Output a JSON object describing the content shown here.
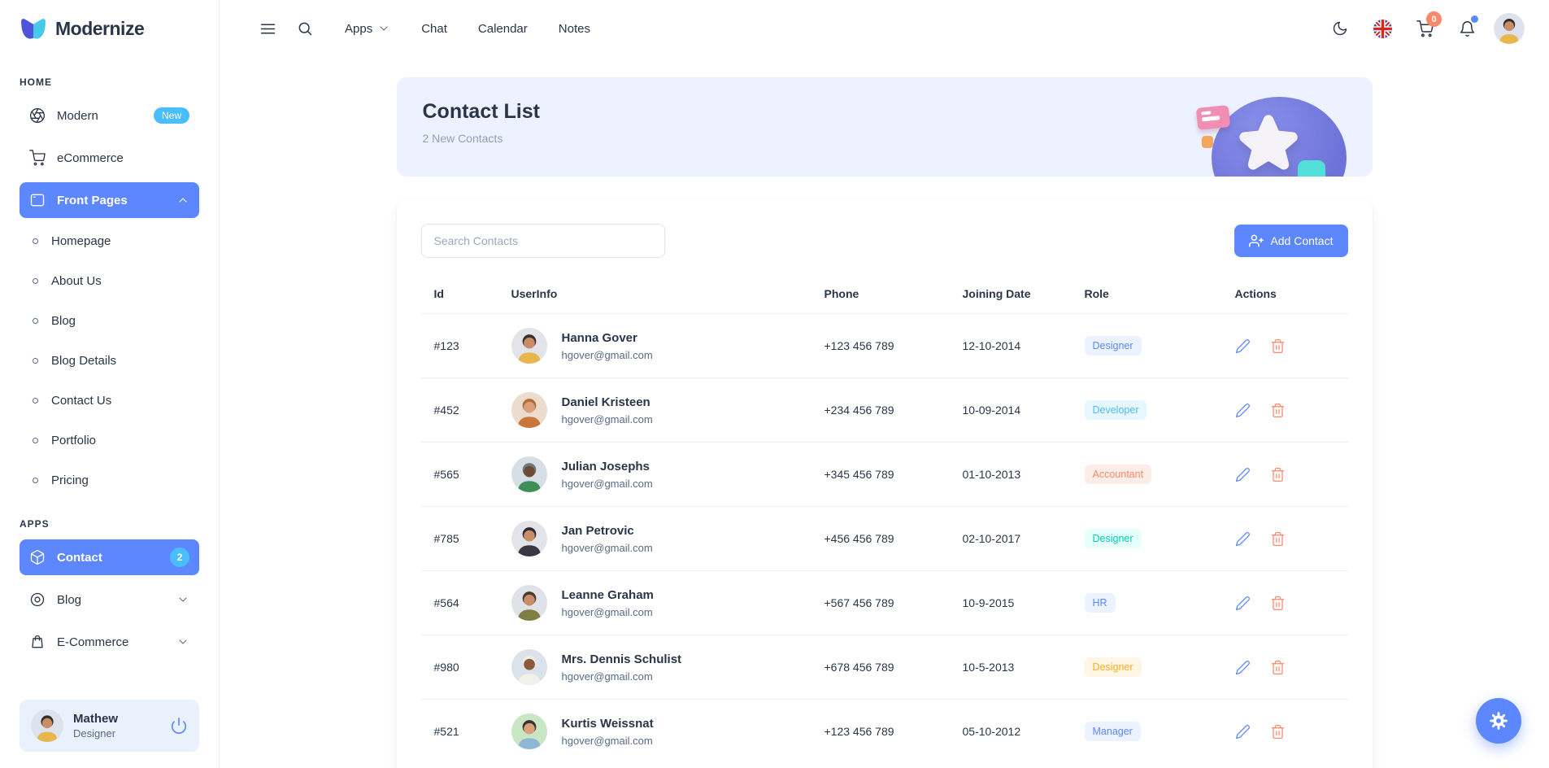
{
  "brand": {
    "name": "Modernize"
  },
  "navbar": {
    "menu": [
      {
        "label": "Apps",
        "dropdown": true
      },
      {
        "label": "Chat",
        "dropdown": false
      },
      {
        "label": "Calendar",
        "dropdown": false
      },
      {
        "label": "Notes",
        "dropdown": false
      }
    ],
    "cart_badge": "0",
    "icons": [
      "menu-icon",
      "search-icon",
      "moon-icon",
      "uk-flag-icon",
      "cart-icon",
      "bell-icon",
      "user-avatar"
    ]
  },
  "sidebar": {
    "sections": [
      {
        "label": "HOME",
        "items": [
          {
            "label": "Modern",
            "icon": "aperture-icon",
            "badge": "New"
          },
          {
            "label": "eCommerce",
            "icon": "cart-icon"
          },
          {
            "label": "Front Pages",
            "icon": "window-icon",
            "active": true,
            "expanded": true,
            "children": [
              "Homepage",
              "About Us",
              "Blog",
              "Blog Details",
              "Contact Us",
              "Portfolio",
              "Pricing"
            ]
          }
        ]
      },
      {
        "label": "APPS",
        "items": [
          {
            "label": "Contact",
            "icon": "cube-icon",
            "active": true,
            "badge_count": "2"
          },
          {
            "label": "Blog",
            "icon": "blog-icon",
            "collapsible": true
          },
          {
            "label": "E-Commerce",
            "icon": "bag-icon",
            "collapsible": true
          }
        ]
      }
    ],
    "profile": {
      "name": "Mathew",
      "role": "Designer"
    }
  },
  "banner": {
    "title": "Contact List",
    "subtitle": "2 New Contacts"
  },
  "toolbar": {
    "search_placeholder": "Search Contacts",
    "add_button_label": "Add Contact"
  },
  "table": {
    "headers": [
      "Id",
      "UserInfo",
      "Phone",
      "Joining Date",
      "Role",
      "Actions"
    ],
    "rows": [
      {
        "id": "#123",
        "name": "Hanna Gover",
        "email": "hgover@gmail.com",
        "phone": "+123 456 789",
        "date": "12-10-2014",
        "role": "Designer",
        "role_color": "primary",
        "avatar": {
          "bg": "#E2E4E9",
          "hair": "#3A3230",
          "skin": "#C98E68",
          "shirt": "#E8B64C"
        }
      },
      {
        "id": "#452",
        "name": "Daniel Kristeen",
        "email": "hgover@gmail.com",
        "phone": "+234 456 789",
        "date": "10-09-2014",
        "role": "Developer",
        "role_color": "secondary",
        "avatar": {
          "bg": "#EBDCCD",
          "hair": "#B36B3C",
          "skin": "#D9A07A",
          "shirt": "#C8763B"
        }
      },
      {
        "id": "#565",
        "name": "Julian Josephs",
        "email": "hgover@gmail.com",
        "phone": "+345 456 789",
        "date": "01-10-2013",
        "role": "Accountant",
        "role_color": "danger",
        "avatar": {
          "bg": "#D8DEE6",
          "hair": "#6F7880",
          "skin": "#6E4A33",
          "shirt": "#3E8E58"
        }
      },
      {
        "id": "#785",
        "name": "Jan Petrovic",
        "email": "hgover@gmail.com",
        "phone": "+456 456 789",
        "date": "02-10-2017",
        "role": "Designer",
        "role_color": "success",
        "avatar": {
          "bg": "#E2E4E9",
          "hair": "#2E2A33",
          "skin": "#C98E68",
          "shirt": "#3A3642"
        }
      },
      {
        "id": "#564",
        "name": "Leanne Graham",
        "email": "hgover@gmail.com",
        "phone": "+567 456 789",
        "date": "10-9-2015",
        "role": "HR",
        "role_color": "primary",
        "avatar": {
          "bg": "#DFE3E8",
          "hair": "#4A3A2E",
          "skin": "#C98E68",
          "shirt": "#7F7F45"
        }
      },
      {
        "id": "#980",
        "name": "Mrs. Dennis Schulist",
        "email": "hgover@gmail.com",
        "phone": "+678 456 789",
        "date": "10-5-2013",
        "role": "Designer",
        "role_color": "warning",
        "avatar": {
          "bg": "#DCE2E9",
          "hair": "#EDEDED",
          "skin": "#8A5A3B",
          "shirt": "#F2F0EC"
        }
      },
      {
        "id": "#521",
        "name": "Kurtis Weissnat",
        "email": "hgover@gmail.com",
        "phone": "+123 456 789",
        "date": "05-10-2012",
        "role": "Manager",
        "role_color": "primary",
        "avatar": {
          "bg": "#C9E7C4",
          "hair": "#3A3230",
          "skin": "#D9A07A",
          "shirt": "#8FB8D8"
        }
      }
    ]
  },
  "user_avatar": {
    "bg": "#DCE3EC",
    "hair": "#332E2B",
    "skin": "#C98E68",
    "shirt": "#E8B64C"
  },
  "colors": {
    "primary": "#5D87FF",
    "secondary": "#49BEFF",
    "success": "#13DEB9",
    "danger": "#FA896B",
    "warning": "#FFAE1F"
  }
}
